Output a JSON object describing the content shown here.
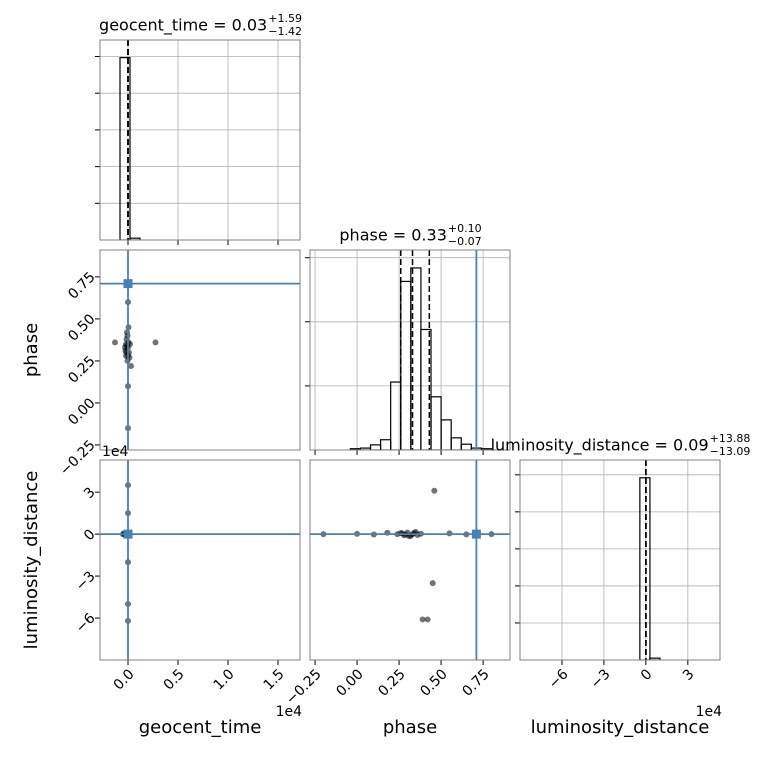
{
  "chart_data": [
    {
      "type": "histogram",
      "title": "geocent_time = 0.03",
      "title_upper": "+1.59",
      "title_lower": "−1.42",
      "bins": [
        -800,
        200,
        1200
      ],
      "values": [
        4.97,
        0.05
      ],
      "color": "#000000",
      "xlim": [
        -2800,
        17200
      ],
      "xticks": [
        0,
        5000,
        10000,
        15000
      ],
      "ylim": [
        0,
        5.45
      ],
      "yticks": [
        1,
        2,
        3,
        4,
        5
      ],
      "quantiles": [
        -1.39,
        0.03,
        1.62
      ],
      "grid": true
    },
    {
      "type": "scatter",
      "ylabel": "phase",
      "x": [
        -300,
        -250,
        -200,
        -150,
        -100,
        -50,
        0,
        50,
        100,
        -200,
        -150,
        -100,
        -50,
        0,
        150,
        200,
        0,
        0,
        0,
        0,
        2750,
        -1300,
        300,
        50
      ],
      "y": [
        0.33,
        0.31,
        0.28,
        0.38,
        0.42,
        0.25,
        0.33,
        0.36,
        0.3,
        0.35,
        0.3,
        0.34,
        0.4,
        0.28,
        0.27,
        0.35,
        0.6,
        0.1,
        -0.15,
        0.7,
        0.36,
        0.36,
        0.22,
        0.45
      ],
      "color": "#000000",
      "xlim": [
        -2800,
        17200
      ],
      "ylim": [
        -0.28,
        0.91
      ],
      "yticks": [
        {
          "value": -0.25,
          "label": "−0.25"
        },
        {
          "value": 0,
          "label": "0.00"
        },
        0.25,
        {
          "value": 0.5,
          "label": "0.50"
        },
        0.75
      ],
      "truth_x": 0,
      "truth_y": 0.71,
      "truth_color": "#4682b4"
    },
    {
      "type": "histogram",
      "title": "phase = 0.33",
      "title_upper": "+0.10",
      "title_lower": "−0.07",
      "bins": [
        -0.04,
        0.02,
        0.08,
        0.14,
        0.2,
        0.26,
        0.32,
        0.38,
        0.44,
        0.5,
        0.56,
        0.62,
        0.68,
        0.74,
        0.8,
        0.86
      ],
      "values": [
        0.02,
        0.03,
        0.08,
        0.16,
        1.06,
        2.63,
        2.84,
        1.88,
        0.83,
        0.47,
        0.19,
        0.09,
        0.03,
        0.02,
        0
      ],
      "color": "#000000",
      "xlim": [
        -0.28,
        0.91
      ],
      "xticks": [
        -0.25,
        0,
        0.25,
        0.5,
        0.75
      ],
      "ylim": [
        0,
        3.12
      ],
      "yticks": [
        1,
        2,
        3
      ],
      "quantiles": [
        0.26,
        0.33,
        0.43
      ],
      "truth": 0.71,
      "truth_color": "#4682b4",
      "grid": true
    },
    {
      "type": "scatter",
      "xlabel": "geocent_time",
      "x_offset": "1e4",
      "ylabel": "luminosity_distance",
      "y_offset": "1e4",
      "x": [
        -500,
        -400,
        -300,
        -200,
        -100,
        0,
        100,
        -350,
        -250,
        0,
        0,
        0,
        0,
        0
      ],
      "y": [
        0,
        500,
        -500,
        300,
        0,
        0,
        0,
        -300,
        200,
        -20000,
        -50000,
        15000,
        35000,
        -62000
      ],
      "color": "#000000",
      "xlim": [
        -2800,
        17200
      ],
      "ylim": [
        -90000,
        53000
      ],
      "xticks": [
        {
          "value": 0,
          "label": "0.0"
        },
        {
          "value": 5000,
          "label": "0.5"
        },
        {
          "value": 10000,
          "label": "1.0"
        },
        {
          "value": 15000,
          "label": "1.5"
        }
      ],
      "yticks": [
        {
          "value": -60000,
          "label": "−6"
        },
        {
          "value": -30000,
          "label": "−3"
        },
        0,
        {
          "value": 30000,
          "label": "3"
        }
      ],
      "truth_x": 0,
      "truth_y": 0,
      "truth_color": "#4682b4"
    },
    {
      "type": "scatter",
      "xlabel": "phase",
      "x": [
        0.24,
        0.26,
        0.28,
        0.3,
        0.32,
        0.34,
        0.36,
        0.38,
        0.27,
        0.31,
        0.35,
        0.29,
        0.33,
        0.46,
        0.45,
        0.39,
        0.42,
        -0.2,
        0.0,
        0.1,
        0.55,
        0.65,
        0.8,
        0.18
      ],
      "y": [
        0,
        800,
        -800,
        1200,
        -1200,
        900,
        -600,
        300,
        500,
        -1500,
        1500,
        -400,
        0,
        31000,
        -35000,
        -61000,
        -61000,
        0,
        200,
        -300,
        500,
        -200,
        0,
        1000
      ],
      "color": "#000000",
      "xlim": [
        -0.28,
        0.91
      ],
      "ylim": [
        -90000,
        53000
      ],
      "xticks": [
        {
          "value": -0.25,
          "label": "−0.25"
        },
        {
          "value": 0,
          "label": "0.00"
        },
        0.25,
        {
          "value": 0.5,
          "label": "0.50"
        },
        0.75
      ],
      "truth_x": 0.71,
      "truth_y": 0,
      "truth_color": "#4682b4"
    },
    {
      "type": "histogram",
      "title": "luminosity_distance = 0.09",
      "title_upper": "+13.88",
      "title_lower": "−13.09",
      "xlabel": "luminosity_distance",
      "x_offset": "1e4",
      "bins": [
        -4300,
        2900,
        10100
      ],
      "values": [
        4.92,
        0.05
      ],
      "color": "#000000",
      "xlim": [
        -90000,
        53000
      ],
      "xticks": [
        {
          "value": -60000,
          "label": "−6"
        },
        {
          "value": -30000,
          "label": "−3"
        },
        0,
        {
          "value": 30000,
          "label": "3"
        }
      ],
      "ylim": [
        0,
        5.4
      ],
      "yticks": [
        1,
        2,
        3,
        4,
        5
      ],
      "quantiles": [
        -13,
        0.09,
        13.97
      ],
      "grid": true
    }
  ]
}
